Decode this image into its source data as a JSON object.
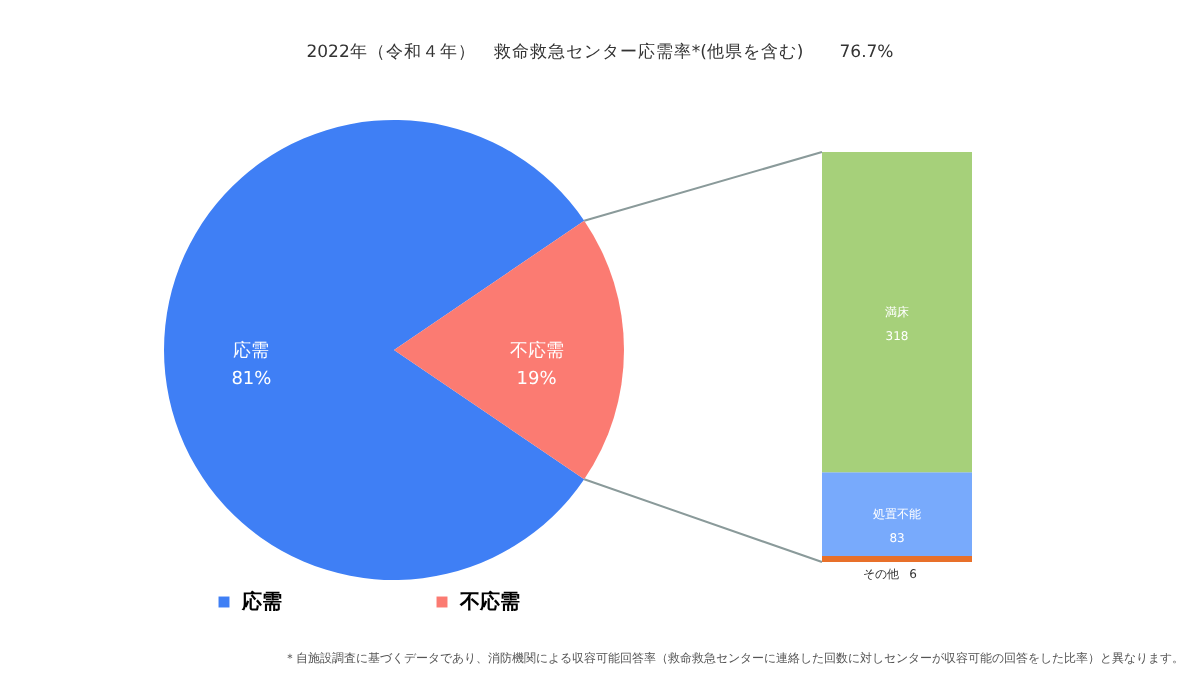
{
  "chart_data": [
    {
      "type": "pie",
      "title": "2022年（令和４年）　救命救急センター応需率*(他県を含む)　　76.7%",
      "categories": [
        "応需",
        "不応需"
      ],
      "values": [
        81,
        19
      ],
      "value_labels": [
        "81%",
        "19%"
      ],
      "colors": [
        "#3f7ff5",
        "#fb7b72"
      ],
      "legend": "bottom left",
      "annotations": [
        "＊自施設調査に基づくデータであり、消防機関による収容可能回答率（救命救急センターに連絡した回数に対しセンターが収容可能の回答をした比率）と異なります。"
      ]
    },
    {
      "type": "bar",
      "stacked": true,
      "categories": [
        null
      ],
      "data_labels": true,
      "legend": false,
      "series": [
        {
          "name": "その他",
          "color": "#e8702a",
          "values": [
            6
          ]
        },
        {
          "name": "処置不能",
          "color": "#78aafc",
          "values": [
            83
          ]
        },
        {
          "name": "満床",
          "color": "#a6d07a",
          "values": [
            318
          ]
        }
      ]
    }
  ]
}
